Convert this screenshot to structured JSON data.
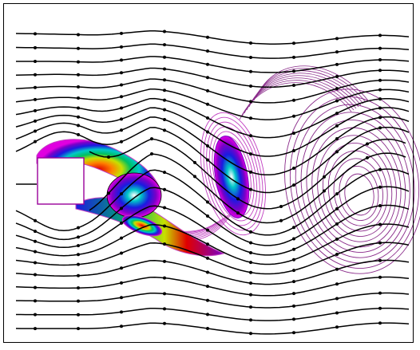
{
  "figure": {
    "kind": "vortex shedding behind a square cylinder",
    "colors": {
      "background": "#ffffff",
      "border": "#000000",
      "streamline": "#000000",
      "far_vortex_contour": "#8a2b8a",
      "near_vortex_contour": "#c13fc1",
      "colormap": [
        "#ffffff",
        "#e000e0",
        "#7a00c8",
        "#1a1ae0",
        "#0090ff",
        "#00c8c8",
        "#00c060",
        "#c8e000",
        "#ff8000",
        "#e00000"
      ],
      "obstacle_fill": "#ffffff",
      "obstacle_edge": "#9a009a"
    },
    "streamline_count": 22,
    "wake_vortices": 3
  }
}
